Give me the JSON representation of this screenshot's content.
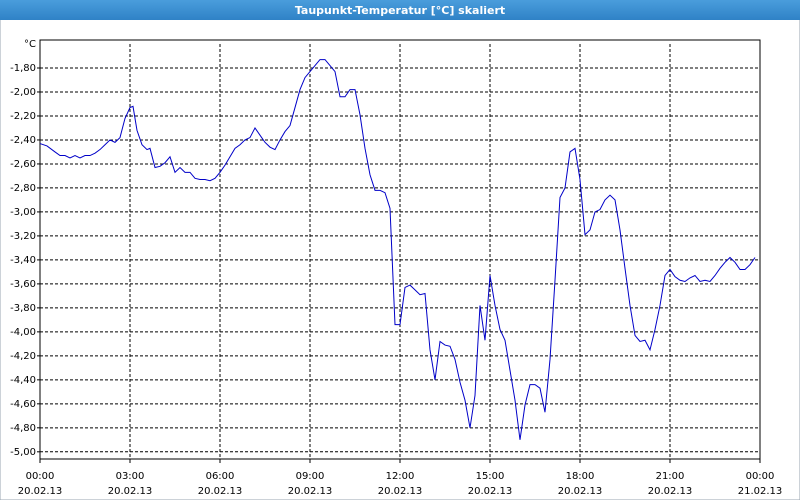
{
  "chart_data": {
    "type": "line",
    "title": "Taupunkt-Temperatur [°C] skaliert",
    "y_label": "°C",
    "color": "#0000c8",
    "grid": true,
    "x": [
      0,
      14,
      30,
      40,
      50,
      60,
      70,
      80,
      90,
      100,
      110,
      120,
      130,
      140,
      150,
      160,
      170,
      180,
      186,
      194,
      204,
      214,
      220,
      230,
      240,
      250,
      260,
      270,
      280,
      290,
      300,
      310,
      320,
      330,
      340,
      350,
      360,
      370,
      380,
      390,
      400,
      410,
      420,
      430,
      440,
      450,
      460,
      470,
      480,
      490,
      500,
      510,
      520,
      530,
      540,
      550,
      560,
      570,
      580,
      590,
      600,
      610,
      620,
      630,
      640,
      650,
      660,
      670,
      680,
      690,
      700,
      710,
      720,
      730,
      740,
      750,
      760,
      770,
      780,
      790,
      800,
      810,
      820,
      830,
      840,
      850,
      860,
      870,
      880,
      890,
      900,
      910,
      920,
      930,
      940,
      950,
      960,
      970,
      980,
      990,
      1000,
      1010,
      1020,
      1030,
      1040,
      1050,
      1060,
      1070,
      1080,
      1090,
      1100,
      1110,
      1120,
      1130,
      1140,
      1150,
      1160,
      1170,
      1180,
      1190,
      1200,
      1210,
      1220,
      1230,
      1240,
      1250,
      1260,
      1270,
      1280,
      1290,
      1300,
      1310,
      1320,
      1330,
      1340,
      1350,
      1360,
      1370,
      1380,
      1390,
      1400,
      1410,
      1420,
      1430
    ],
    "values": [
      -2.43,
      -2.45,
      -2.5,
      -2.53,
      -2.53,
      -2.55,
      -2.53,
      -2.55,
      -2.53,
      -2.53,
      -2.51,
      -2.48,
      -2.44,
      -2.4,
      -2.42,
      -2.38,
      -2.22,
      -2.13,
      -2.12,
      -2.32,
      -2.44,
      -2.48,
      -2.47,
      -2.63,
      -2.62,
      -2.59,
      -2.54,
      -2.67,
      -2.63,
      -2.67,
      -2.67,
      -2.72,
      -2.73,
      -2.73,
      -2.74,
      -2.72,
      -2.67,
      -2.61,
      -2.54,
      -2.47,
      -2.44,
      -2.4,
      -2.38,
      -2.3,
      -2.36,
      -2.42,
      -2.46,
      -2.48,
      -2.4,
      -2.33,
      -2.28,
      -2.13,
      -1.98,
      -1.88,
      -1.83,
      -1.78,
      -1.73,
      -1.73,
      -1.78,
      -1.83,
      -2.04,
      -2.04,
      -1.98,
      -1.98,
      -2.19,
      -2.47,
      -2.69,
      -2.82,
      -2.82,
      -2.84,
      -2.97,
      -3.94,
      -3.94,
      -3.63,
      -3.61,
      -3.65,
      -3.69,
      -3.68,
      -4.15,
      -4.4,
      -4.08,
      -4.11,
      -4.12,
      -4.23,
      -4.42,
      -4.57,
      -4.8,
      -4.53,
      -3.78,
      -4.07,
      -3.53,
      -3.78,
      -3.98,
      -4.07,
      -4.32,
      -4.57,
      -4.9,
      -4.61,
      -4.44,
      -4.44,
      -4.47,
      -4.67,
      -4.23,
      -3.57,
      -2.88,
      -2.8,
      -2.5,
      -2.47,
      -2.73,
      -3.19,
      -3.15,
      -3.0,
      -2.98,
      -2.9,
      -2.86,
      -2.9,
      -3.15,
      -3.47,
      -3.78,
      -4.03,
      -4.08,
      -4.07,
      -4.15,
      -3.98,
      -3.78,
      -3.53,
      -3.48,
      -3.54,
      -3.57,
      -3.58,
      -3.55,
      -3.53,
      -3.58,
      -3.57,
      -3.58,
      -3.53,
      -3.47,
      -3.42,
      -3.38,
      -3.42,
      -3.48,
      -3.48,
      -3.44,
      -3.38
    ],
    "xlim": [
      0,
      1440
    ],
    "xticks": [
      {
        "value": 0,
        "label": "00:00",
        "date": "20.02.13"
      },
      {
        "value": 180,
        "label": "03:00",
        "date": "20.02.13"
      },
      {
        "value": 360,
        "label": "06:00",
        "date": "20.02.13"
      },
      {
        "value": 540,
        "label": "09:00",
        "date": "20.02.13"
      },
      {
        "value": 720,
        "label": "12:00",
        "date": "20.02.13"
      },
      {
        "value": 900,
        "label": "15:00",
        "date": "20.02.13"
      },
      {
        "value": 1080,
        "label": "18:00",
        "date": "20.02.13"
      },
      {
        "value": 1260,
        "label": "21:00",
        "date": "20.02.13"
      },
      {
        "value": 1440,
        "label": "00:00",
        "date": "21.02.13"
      }
    ],
    "ylim": [
      -5.06,
      -1.6
    ],
    "yticks": [
      {
        "value": -1.8,
        "label": "-1,80"
      },
      {
        "value": -2.0,
        "label": "-2,00"
      },
      {
        "value": -2.2,
        "label": "-2,20"
      },
      {
        "value": -2.4,
        "label": "-2,40"
      },
      {
        "value": -2.6,
        "label": "-2,60"
      },
      {
        "value": -2.8,
        "label": "-2,80"
      },
      {
        "value": -3.0,
        "label": "-3,00"
      },
      {
        "value": -3.2,
        "label": "-3,20"
      },
      {
        "value": -3.4,
        "label": "-3,40"
      },
      {
        "value": -3.6,
        "label": "-3,60"
      },
      {
        "value": -3.8,
        "label": "-3,80"
      },
      {
        "value": -4.0,
        "label": "-4,00"
      },
      {
        "value": -4.2,
        "label": "-4,20"
      },
      {
        "value": -4.4,
        "label": "-4,40"
      },
      {
        "value": -4.6,
        "label": "-4,60"
      },
      {
        "value": -4.8,
        "label": "-4,80"
      },
      {
        "value": -5.0,
        "label": "-5,00"
      }
    ]
  }
}
